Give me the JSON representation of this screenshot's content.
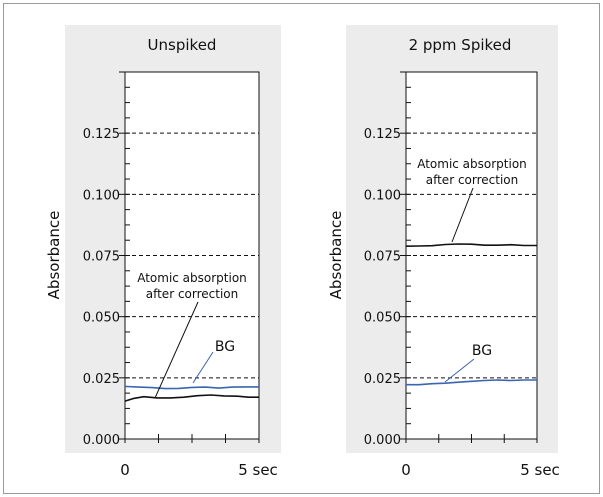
{
  "chart_data": [
    {
      "type": "line",
      "title": "Unspiked",
      "xlabel": "",
      "ylabel": "Absorbance",
      "xlim": [
        0,
        5
      ],
      "ylim": [
        0,
        0.15
      ],
      "x_tick_labels": [
        "0",
        "5 sec"
      ],
      "y_tick_labels": [
        "0.000",
        "0.025",
        "0.050",
        "0.075",
        "0.100",
        "0.125"
      ],
      "gridlines": [
        0.025,
        0.05,
        0.075,
        0.1,
        0.125
      ],
      "grid": "dashed horizontal",
      "series": [
        {
          "name": "BG",
          "color": "#3a66b0",
          "points": [
            [
              0,
              0.0215
            ],
            [
              0.5,
              0.0212
            ],
            [
              1.0,
              0.021
            ],
            [
              1.5,
              0.0206
            ],
            [
              2.0,
              0.0207
            ],
            [
              2.5,
              0.0211
            ],
            [
              3.0,
              0.0212
            ],
            [
              3.5,
              0.0208
            ],
            [
              4.0,
              0.0212
            ],
            [
              4.5,
              0.0213
            ],
            [
              5.0,
              0.0213
            ]
          ]
        },
        {
          "name": "Atomic absorption after correction",
          "color": "#111111",
          "points": [
            [
              0,
              0.0155
            ],
            [
              0.3,
              0.0165
            ],
            [
              0.7,
              0.0173
            ],
            [
              1.2,
              0.0168
            ],
            [
              1.7,
              0.0168
            ],
            [
              2.2,
              0.0171
            ],
            [
              2.7,
              0.0177
            ],
            [
              3.2,
              0.018
            ],
            [
              3.7,
              0.0176
            ],
            [
              4.2,
              0.0175
            ],
            [
              4.6,
              0.0171
            ],
            [
              5.0,
              0.0171
            ]
          ]
        }
      ],
      "annotations": [
        {
          "lines": [
            "Atomic absorption",
            "after correction"
          ]
        },
        {
          "lines": [
            "BG"
          ]
        }
      ]
    },
    {
      "type": "line",
      "title": "2 ppm Spiked",
      "xlabel": "",
      "ylabel": "Absorbance",
      "xlim": [
        0,
        5
      ],
      "ylim": [
        0,
        0.15
      ],
      "x_tick_labels": [
        "0",
        "5 sec"
      ],
      "y_tick_labels": [
        "0.000",
        "0.025",
        "0.050",
        "0.075",
        "0.100",
        "0.125"
      ],
      "gridlines": [
        0.025,
        0.05,
        0.075,
        0.1,
        0.125
      ],
      "grid": "dashed horizontal",
      "series": [
        {
          "name": "BG",
          "color": "#3a66b0",
          "points": [
            [
              0,
              0.0222
            ],
            [
              0.5,
              0.0222
            ],
            [
              1.0,
              0.0226
            ],
            [
              1.5,
              0.0228
            ],
            [
              2.0,
              0.0232
            ],
            [
              2.5,
              0.0236
            ],
            [
              3.0,
              0.0239
            ],
            [
              3.5,
              0.0241
            ],
            [
              4.0,
              0.0239
            ],
            [
              4.5,
              0.0241
            ],
            [
              5.0,
              0.0241
            ]
          ]
        },
        {
          "name": "Atomic absorption after correction",
          "color": "#111111",
          "points": [
            [
              0,
              0.0788
            ],
            [
              0.5,
              0.0789
            ],
            [
              1.0,
              0.079
            ],
            [
              1.5,
              0.0795
            ],
            [
              2.0,
              0.0797
            ],
            [
              2.5,
              0.0796
            ],
            [
              3.0,
              0.0792
            ],
            [
              3.5,
              0.0792
            ],
            [
              4.0,
              0.0794
            ],
            [
              4.5,
              0.0791
            ],
            [
              5.0,
              0.0791
            ]
          ]
        }
      ],
      "annotations": [
        {
          "lines": [
            "Atomic absorption",
            "after correction"
          ]
        },
        {
          "lines": [
            "BG"
          ]
        }
      ]
    }
  ]
}
